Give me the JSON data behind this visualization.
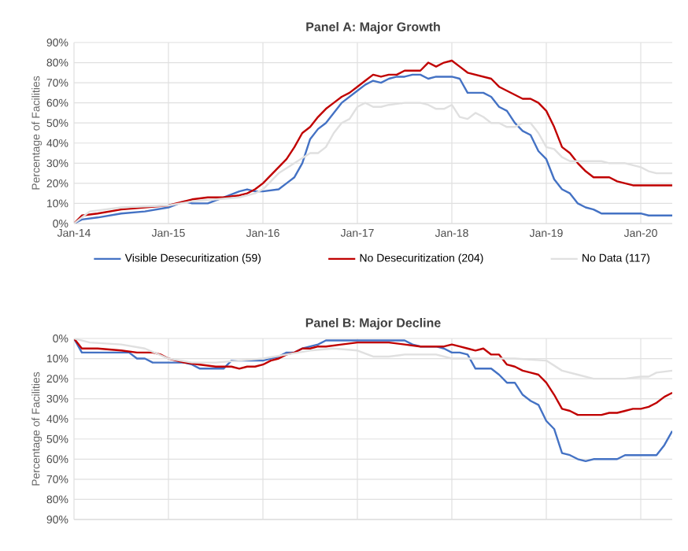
{
  "chart_data": [
    {
      "type": "line",
      "title": "Panel A: Major Growth",
      "ylabel": "Percentage of Facilities",
      "xlim": [
        "2014-01",
        "2020-05"
      ],
      "ylim": [
        0,
        90
      ],
      "xticks": [
        {
          "value": "2014-01",
          "label": "Jan-14"
        },
        {
          "value": "2015-01",
          "label": "Jan-15"
        },
        {
          "value": "2016-01",
          "label": "Jan-16"
        },
        {
          "value": "2017-01",
          "label": "Jan-17"
        },
        {
          "value": "2018-01",
          "label": "Jan-18"
        },
        {
          "value": "2019-01",
          "label": "Jan-19"
        },
        {
          "value": "2020-01",
          "label": "Jan-20"
        }
      ],
      "yticks": [
        {
          "value": 0,
          "label": "0%"
        },
        {
          "value": 10,
          "label": "10%"
        },
        {
          "value": 20,
          "label": "20%"
        },
        {
          "value": 30,
          "label": "30%"
        },
        {
          "value": 40,
          "label": "40%"
        },
        {
          "value": 50,
          "label": "50%"
        },
        {
          "value": 60,
          "label": "60%"
        },
        {
          "value": 70,
          "label": "70%"
        },
        {
          "value": 80,
          "label": "80%"
        },
        {
          "value": 90,
          "label": "90%"
        }
      ],
      "grid": true,
      "legend": "bottom",
      "marker": "none",
      "line_style": "solid",
      "series": [
        {
          "name": "Visible Desecuritization (59)",
          "color": "#4472c4",
          "x": [
            "2014-01",
            "2014-02",
            "2014-04",
            "2014-07",
            "2014-10",
            "2015-01",
            "2015-03",
            "2015-04",
            "2015-06",
            "2015-08",
            "2015-10",
            "2015-11",
            "2015-12",
            "2016-01",
            "2016-03",
            "2016-04",
            "2016-05",
            "2016-06",
            "2016-07",
            "2016-08",
            "2016-09",
            "2016-10",
            "2016-11",
            "2016-12",
            "2017-01",
            "2017-02",
            "2017-03",
            "2017-04",
            "2017-05",
            "2017-06",
            "2017-07",
            "2017-08",
            "2017-09",
            "2017-10",
            "2017-11",
            "2017-12",
            "2018-01",
            "2018-02",
            "2018-03",
            "2018-04",
            "2018-05",
            "2018-06",
            "2018-07",
            "2018-08",
            "2018-09",
            "2018-10",
            "2018-11",
            "2018-12",
            "2019-01",
            "2019-02",
            "2019-03",
            "2019-04",
            "2019-05",
            "2019-06",
            "2019-07",
            "2019-08",
            "2019-09",
            "2020-01",
            "2020-02",
            "2020-05"
          ],
          "values": [
            0,
            2,
            3,
            5,
            6,
            8,
            11,
            10,
            10,
            13,
            16,
            17,
            16,
            16,
            17,
            20,
            23,
            30,
            42,
            47,
            50,
            55,
            60,
            63,
            66,
            69,
            71,
            70,
            72,
            73,
            73,
            74,
            74,
            72,
            73,
            73,
            73,
            72,
            65,
            65,
            65,
            63,
            58,
            56,
            50,
            46,
            44,
            36,
            32,
            22,
            17,
            15,
            10,
            8,
            7,
            5,
            5,
            5,
            4,
            4
          ]
        },
        {
          "name": "No Desecuritization (204)",
          "color": "#c00000",
          "x": [
            "2014-01",
            "2014-02",
            "2014-04",
            "2014-07",
            "2014-10",
            "2015-01",
            "2015-04",
            "2015-06",
            "2015-08",
            "2015-10",
            "2015-11",
            "2015-12",
            "2016-01",
            "2016-02",
            "2016-03",
            "2016-04",
            "2016-05",
            "2016-06",
            "2016-07",
            "2016-08",
            "2016-09",
            "2016-10",
            "2016-11",
            "2016-12",
            "2017-01",
            "2017-02",
            "2017-03",
            "2017-04",
            "2017-05",
            "2017-06",
            "2017-07",
            "2017-08",
            "2017-09",
            "2017-10",
            "2017-11",
            "2017-12",
            "2018-01",
            "2018-02",
            "2018-03",
            "2018-04",
            "2018-05",
            "2018-06",
            "2018-07",
            "2018-08",
            "2018-09",
            "2018-10",
            "2018-11",
            "2018-12",
            "2019-01",
            "2019-02",
            "2019-03",
            "2019-04",
            "2019-05",
            "2019-06",
            "2019-07",
            "2019-08",
            "2019-09",
            "2019-10",
            "2019-11",
            "2019-12",
            "2020-01",
            "2020-05"
          ],
          "values": [
            0,
            4,
            5,
            7,
            8,
            9,
            12,
            13,
            13,
            14,
            15,
            17,
            20,
            24,
            28,
            32,
            38,
            45,
            48,
            53,
            57,
            60,
            63,
            65,
            68,
            71,
            74,
            73,
            74,
            74,
            76,
            76,
            76,
            80,
            78,
            80,
            81,
            78,
            75,
            74,
            73,
            72,
            68,
            66,
            64,
            62,
            62,
            60,
            56,
            48,
            38,
            35,
            30,
            26,
            23,
            23,
            23,
            21,
            20,
            19,
            19,
            19
          ]
        },
        {
          "name": "No Data (117)",
          "color": "#e0e0e0",
          "x": [
            "2014-01",
            "2014-03",
            "2014-07",
            "2015-01",
            "2015-04",
            "2015-07",
            "2015-10",
            "2015-12",
            "2016-01",
            "2016-03",
            "2016-05",
            "2016-07",
            "2016-08",
            "2016-09",
            "2016-10",
            "2016-11",
            "2016-12",
            "2017-01",
            "2017-02",
            "2017-03",
            "2017-04",
            "2017-05",
            "2017-07",
            "2017-09",
            "2017-10",
            "2017-11",
            "2017-12",
            "2018-01",
            "2018-02",
            "2018-03",
            "2018-04",
            "2018-05",
            "2018-06",
            "2018-07",
            "2018-08",
            "2018-09",
            "2018-10",
            "2018-11",
            "2018-12",
            "2019-01",
            "2019-02",
            "2019-03",
            "2019-04",
            "2019-05",
            "2019-07",
            "2019-08",
            "2019-09",
            "2019-11",
            "2019-12",
            "2020-01",
            "2020-02",
            "2020-03",
            "2020-05"
          ],
          "values": [
            0,
            6,
            8,
            9,
            11,
            12,
            13,
            15,
            17,
            25,
            30,
            35,
            35,
            38,
            45,
            50,
            52,
            58,
            60,
            58,
            58,
            59,
            60,
            60,
            59,
            57,
            57,
            59,
            53,
            52,
            55,
            53,
            50,
            50,
            48,
            48,
            50,
            50,
            45,
            38,
            37,
            33,
            31,
            31,
            31,
            31,
            30,
            30,
            29,
            28,
            26,
            25,
            25
          ]
        }
      ]
    },
    {
      "type": "line",
      "title": "Panel B: Major Decline",
      "ylabel": "Percentage of Facilities",
      "xlim": [
        "2014-01",
        "2020-05"
      ],
      "ylim": [
        90,
        0
      ],
      "tick_labels": "y",
      "xticks": [
        {
          "value": "2014-01",
          "label": null
        },
        {
          "value": "2015-01",
          "label": null
        },
        {
          "value": "2016-01",
          "label": null
        },
        {
          "value": "2017-01",
          "label": null
        },
        {
          "value": "2018-01",
          "label": null
        },
        {
          "value": "2019-01",
          "label": null
        },
        {
          "value": "2020-01",
          "label": null
        }
      ],
      "yticks": [
        {
          "value": 0,
          "label": "0%"
        },
        {
          "value": 10,
          "label": "10%"
        },
        {
          "value": 20,
          "label": "20%"
        },
        {
          "value": 30,
          "label": "30%"
        },
        {
          "value": 40,
          "label": "40%"
        },
        {
          "value": 50,
          "label": "50%"
        },
        {
          "value": 60,
          "label": "60%"
        },
        {
          "value": 70,
          "label": "70%"
        },
        {
          "value": 80,
          "label": "80%"
        },
        {
          "value": 90,
          "label": "90%"
        }
      ],
      "grid": true,
      "marker": "none",
      "line_style": "solid",
      "series": [
        {
          "color": "#4472c4",
          "x": [
            "2014-01",
            "2014-02",
            "2014-04",
            "2014-07",
            "2014-08",
            "2014-09",
            "2014-10",
            "2014-11",
            "2015-01",
            "2015-03",
            "2015-04",
            "2015-05",
            "2015-08",
            "2015-09",
            "2016-01",
            "2016-02",
            "2016-03",
            "2016-04",
            "2016-05",
            "2016-06",
            "2016-07",
            "2016-08",
            "2016-09",
            "2017-01",
            "2017-05",
            "2017-07",
            "2017-08",
            "2017-09",
            "2017-11",
            "2017-12",
            "2018-01",
            "2018-02",
            "2018-03",
            "2018-04",
            "2018-06",
            "2018-07",
            "2018-08",
            "2018-09",
            "2018-10",
            "2018-11",
            "2018-12",
            "2019-01",
            "2019-02",
            "2019-03",
            "2019-04",
            "2019-05",
            "2019-06",
            "2019-07",
            "2019-09",
            "2019-10",
            "2019-11",
            "2019-12",
            "2020-03",
            "2020-04",
            "2020-05"
          ],
          "values": [
            0,
            7,
            7,
            7,
            7,
            10,
            10,
            12,
            12,
            12,
            13,
            15,
            15,
            11,
            11,
            10,
            9,
            7,
            7,
            5,
            4,
            3,
            1,
            1,
            1,
            1,
            3,
            4,
            4,
            5,
            7,
            7,
            8,
            15,
            15,
            18,
            22,
            22,
            28,
            31,
            33,
            41,
            45,
            57,
            58,
            60,
            61,
            60,
            60,
            60,
            58,
            58,
            58,
            53,
            46
          ]
        },
        {
          "color": "#c00000",
          "x": [
            "2014-01",
            "2014-02",
            "2014-04",
            "2014-07",
            "2014-09",
            "2014-11",
            "2014-12",
            "2015-01",
            "2015-03",
            "2015-05",
            "2015-07",
            "2015-09",
            "2015-10",
            "2015-11",
            "2015-12",
            "2016-01",
            "2016-02",
            "2016-03",
            "2016-04",
            "2016-05",
            "2016-06",
            "2016-07",
            "2016-08",
            "2016-09",
            "2016-11",
            "2017-01",
            "2017-05",
            "2017-07",
            "2017-09",
            "2017-11",
            "2017-12",
            "2018-01",
            "2018-02",
            "2018-03",
            "2018-04",
            "2018-05",
            "2018-06",
            "2018-07",
            "2018-08",
            "2018-09",
            "2018-10",
            "2018-11",
            "2018-12",
            "2019-01",
            "2019-02",
            "2019-03",
            "2019-04",
            "2019-05",
            "2019-06",
            "2019-07",
            "2019-08",
            "2019-09",
            "2019-10",
            "2019-11",
            "2019-12",
            "2020-01",
            "2020-02",
            "2020-03",
            "2020-04",
            "2020-05"
          ],
          "values": [
            0,
            5,
            5,
            6,
            7,
            7,
            8,
            10,
            12,
            13,
            14,
            14,
            15,
            14,
            14,
            13,
            11,
            10,
            8,
            7,
            5,
            5,
            4,
            4,
            3,
            2,
            2,
            3,
            4,
            4,
            4,
            3,
            4,
            5,
            6,
            5,
            8,
            8,
            13,
            14,
            16,
            17,
            18,
            22,
            28,
            35,
            36,
            38,
            38,
            38,
            38,
            37,
            37,
            36,
            35,
            35,
            34,
            32,
            29,
            27
          ]
        },
        {
          "color": "#e0e0e0",
          "x": [
            "2014-01",
            "2014-03",
            "2014-07",
            "2014-10",
            "2015-01",
            "2015-04",
            "2015-07",
            "2015-10",
            "2016-01",
            "2016-04",
            "2016-07",
            "2016-10",
            "2017-01",
            "2017-03",
            "2017-05",
            "2017-07",
            "2017-11",
            "2018-01",
            "2018-03",
            "2018-05",
            "2018-09",
            "2019-01",
            "2019-03",
            "2019-05",
            "2019-07",
            "2019-09",
            "2019-11",
            "2020-01",
            "2020-02",
            "2020-03",
            "2020-05"
          ],
          "values": [
            0,
            2,
            3,
            5,
            10,
            12,
            12,
            11,
            10,
            8,
            6,
            5,
            6,
            9,
            9,
            8,
            8,
            10,
            10,
            10,
            10,
            11,
            16,
            18,
            20,
            20,
            20,
            19,
            19,
            17,
            16
          ]
        }
      ]
    }
  ]
}
